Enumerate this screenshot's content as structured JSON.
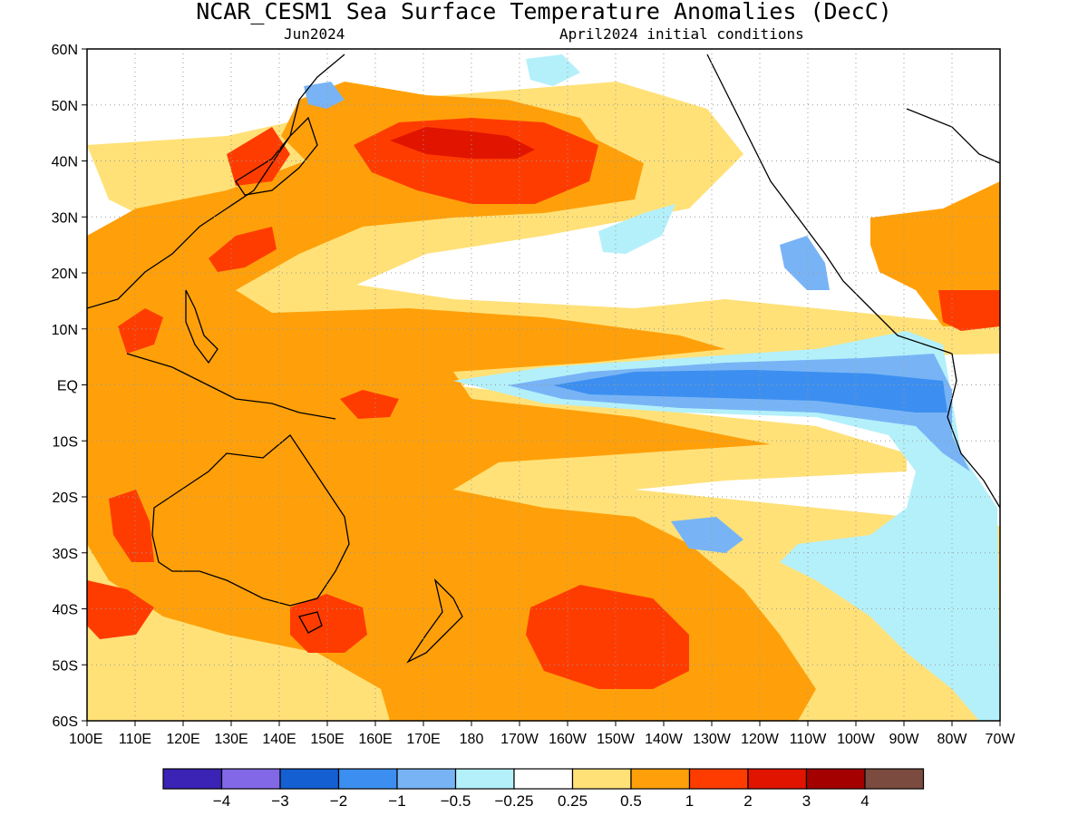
{
  "title": "NCAR_CESM1 Sea Surface Temperature Anomalies (DecC)",
  "subtitle_left": "Jun2024",
  "subtitle_right": "April2024 initial conditions",
  "lat_labels": [
    "60N",
    "50N",
    "40N",
    "30N",
    "20N",
    "10N",
    "EQ",
    "10S",
    "20S",
    "30S",
    "40S",
    "50S",
    "60S"
  ],
  "lon_labels": [
    "100E",
    "110E",
    "120E",
    "130E",
    "140E",
    "150E",
    "160E",
    "170E",
    "180",
    "170W",
    "160W",
    "150W",
    "140W",
    "130W",
    "120W",
    "110W",
    "100W",
    "90W",
    "80W",
    "70W"
  ],
  "colorbar": {
    "colors": [
      "#3a23b5",
      "#8268e6",
      "#1460d2",
      "#3c8ff0",
      "#78b4f5",
      "#b4f0fa",
      "#ffffff",
      "#ffe178",
      "#ffa00a",
      "#ff3c00",
      "#e11400",
      "#a50000",
      "#7b4b3f"
    ],
    "labels": [
      "−4",
      "−3",
      "−2",
      "−1",
      "−0.5",
      "−0.25",
      "0.25",
      "0.5",
      "1",
      "2",
      "3",
      "4"
    ]
  }
}
